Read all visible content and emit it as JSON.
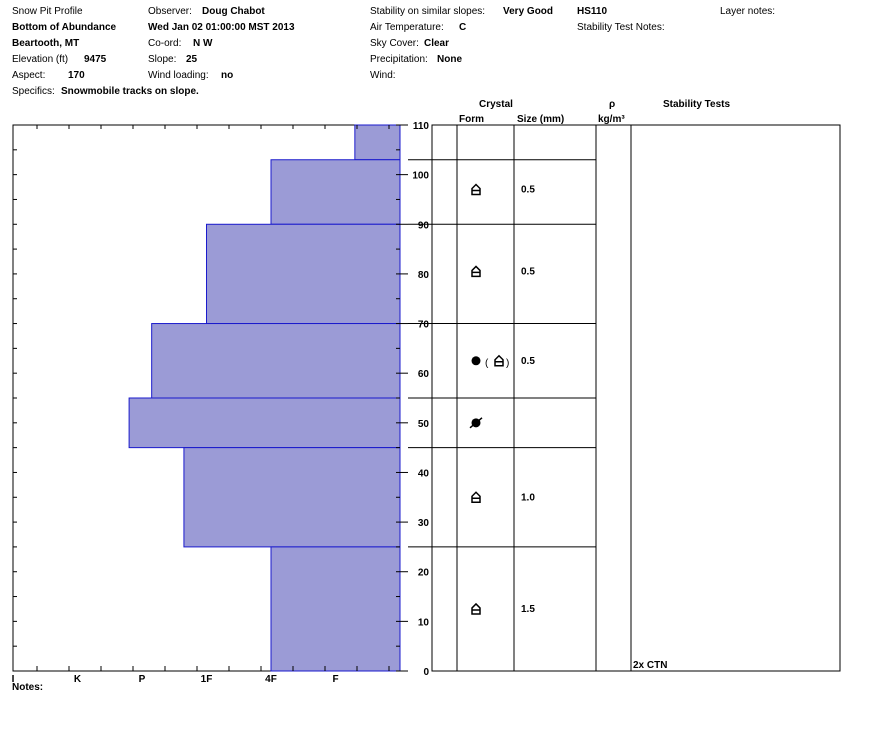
{
  "header": {
    "profile_label": "Snow Pit Profile",
    "location_name": "Bottom of Abundance",
    "region": "Beartooth, MT",
    "elevation_label": "Elevation (ft)",
    "elevation_value": "9475",
    "aspect_label": "Aspect:",
    "aspect_value": "170",
    "specifics_label": "Specifics:",
    "specifics_value": "Snowmobile tracks on slope.",
    "observer_label": "Observer:",
    "observer_value": "Doug Chabot",
    "datetime": "Wed Jan 02 01:00:00 MST 2013",
    "coord_label": "Co-ord:",
    "coord_value": "N  W",
    "slope_label": "Slope:",
    "slope_value": "25",
    "wind_loading_label": "Wind loading:",
    "wind_loading_value": "no",
    "stability_label": "Stability on similar slopes:",
    "stability_value": "Very Good",
    "air_temp_label": "Air Temperature:",
    "air_temp_value": "C",
    "sky_label": "Sky Cover:",
    "sky_value": "Clear",
    "precip_label": "Precipitation:",
    "precip_value": "None",
    "wind_label": "Wind:",
    "hs": "HS110",
    "stability_notes_label": "Stability Test Notes:",
    "layer_notes_label": "Layer notes:"
  },
  "columns": {
    "crystal": "Crystal",
    "form": "Form",
    "size": "Size (mm)",
    "rho": "ρ",
    "rho_unit": "kg/m³",
    "stability_tests": "Stability Tests"
  },
  "notes_label": "Notes:",
  "chart_data": {
    "type": "bar",
    "orientation": "horizontal",
    "description_axis": "hand hardness vs snow depth",
    "x_categories": [
      "I",
      "K",
      "P",
      "1F",
      "4F",
      "F"
    ],
    "x_values": [
      6,
      5,
      4,
      3,
      2,
      1
    ],
    "ylim": [
      0,
      110
    ],
    "y_ticks": [
      0,
      10,
      20,
      30,
      40,
      50,
      60,
      70,
      80,
      90,
      100,
      110
    ],
    "layers": [
      {
        "bottom": 103,
        "top": 110,
        "hardness_index": 0.7
      },
      {
        "bottom": 90,
        "top": 103,
        "hardness_index": 2.0
      },
      {
        "bottom": 70,
        "top": 90,
        "hardness_index": 3.0
      },
      {
        "bottom": 55,
        "top": 70,
        "hardness_index": 3.85
      },
      {
        "bottom": 45,
        "top": 55,
        "hardness_index": 4.2
      },
      {
        "bottom": 25,
        "top": 45,
        "hardness_index": 3.35
      },
      {
        "bottom": 0,
        "top": 25,
        "hardness_index": 2.0
      }
    ],
    "fill_color": "#9b9bd6",
    "stroke_color": "#1a1acc",
    "crystal_layers": [
      {
        "bottom": 90,
        "top": 103,
        "label_depth": 97,
        "form": "depth-hoar",
        "size": "0.5"
      },
      {
        "bottom": 70,
        "top": 90,
        "label_depth": 80.5,
        "form": "depth-hoar",
        "size": "0.5"
      },
      {
        "bottom": 55,
        "top": 70,
        "label_depth": 62.5,
        "form": "graupel(depth-hoar)",
        "size": "0.5"
      },
      {
        "bottom": 45,
        "top": 55,
        "label_depth": 50,
        "form": "ice-formation",
        "size": ""
      },
      {
        "bottom": 25,
        "top": 45,
        "label_depth": 35,
        "form": "depth-hoar",
        "size": "1.0"
      },
      {
        "bottom": 0,
        "top": 25,
        "label_depth": 12.5,
        "form": "depth-hoar",
        "size": "1.5"
      }
    ],
    "stability_tests": [
      {
        "depth": 1,
        "text": "2x CTN"
      }
    ]
  }
}
